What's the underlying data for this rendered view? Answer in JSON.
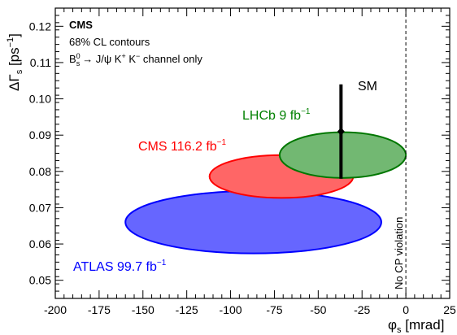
{
  "chart_data": {
    "type": "contour",
    "experiment_label": "CMS",
    "annotation_lines": [
      "68% CL contours"
    ],
    "channel_label": {
      "prefix": "B",
      "prefix_sup": "0",
      "prefix_sub": "s",
      "rest": "→ J/ψ K",
      "k1_sup": "+",
      "mid": " K",
      "k2_sup": "−",
      "suffix": " channel only"
    },
    "xlabel": {
      "symbol": "φ",
      "sub": "s",
      "unit": " [mrad]"
    },
    "ylabel": {
      "symbol": "ΔΓ",
      "sub": "s",
      "unit_pre": " [ps",
      "unit_sup": "−1",
      "unit_post": "]"
    },
    "xlim": [
      -200,
      25
    ],
    "ylim": [
      0.045,
      0.125
    ],
    "xticks": [
      -200,
      -175,
      -150,
      -125,
      -100,
      -75,
      -50,
      -25,
      0,
      25
    ],
    "xtick_labels": [
      "-200",
      "-175",
      "-150",
      "-125",
      "-100",
      "-75",
      "-50",
      "-25",
      "0",
      "25"
    ],
    "yticks": [
      0.05,
      0.06,
      0.07,
      0.08,
      0.09,
      0.1,
      0.11,
      0.12
    ],
    "ytick_labels": [
      "0.05",
      "0.06",
      "0.07",
      "0.08",
      "0.09",
      "0.10",
      "0.11",
      "0.12"
    ],
    "contours": [
      {
        "name": "ATLAS",
        "lumi": "99.7",
        "center": [
          -87,
          0.066
        ],
        "half_width": 73,
        "half_height": 0.0086,
        "fill": "#6666ff",
        "stroke": "#0000ff",
        "label_color": "#0000ff"
      },
      {
        "name": "CMS",
        "lumi": "116.2",
        "center": [
          -71,
          0.0786
        ],
        "half_width": 41,
        "half_height": 0.0059,
        "fill": "#ff6666",
        "stroke": "#ff0000",
        "label_color": "#ff0000"
      },
      {
        "name": "LHCb",
        "lumi": "9",
        "center": [
          -36,
          0.0845
        ],
        "half_width": 36,
        "half_height": 0.0063,
        "fill": "#72b872",
        "stroke": "#007700",
        "label_color": "#008000"
      }
    ],
    "lumi_unit": {
      "base": "fb",
      "sup": "−1"
    },
    "sm": {
      "label": "SM",
      "phi": -37,
      "dgamma": 0.091,
      "dgamma_err_up": 0.013,
      "dgamma_err_down": 0.013
    },
    "no_cp_violation": {
      "phi": 0,
      "label": "No CP violation"
    }
  }
}
